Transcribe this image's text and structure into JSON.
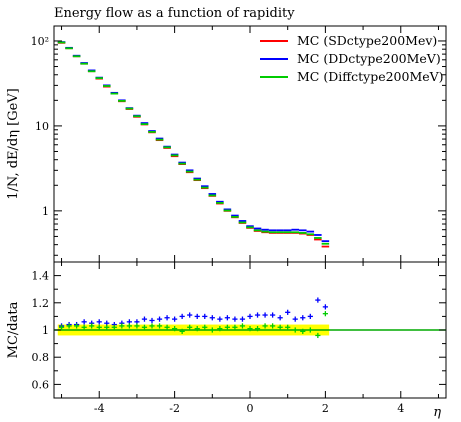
{
  "chart_data": {
    "type": "scatter",
    "title": "Energy flow as a function of rapidity",
    "xlabel": "η",
    "ylabel": "1/N, dE/dη [GeV]",
    "ratio_ylabel": "MC/data",
    "xlim": [
      -5.2,
      5.2
    ],
    "ylim": [
      0.25,
      150
    ],
    "yscale": "log",
    "ratio_ylim": [
      0.5,
      1.5
    ],
    "legend_position": "top-right",
    "x_ticks": [
      "-4",
      "-2",
      "0",
      "2",
      "4"
    ],
    "main_y_ticks": [
      "10²",
      "10",
      "1"
    ],
    "ratio_y_ticks": [
      "1.4",
      "1.2",
      "1",
      "0.8",
      "0.6"
    ],
    "x": [
      -5.0,
      -4.8,
      -4.6,
      -4.4,
      -4.2,
      -4.0,
      -3.8,
      -3.6,
      -3.4,
      -3.2,
      -3.0,
      -2.8,
      -2.6,
      -2.4,
      -2.2,
      -2.0,
      -1.8,
      -1.6,
      -1.4,
      -1.2,
      -1.0,
      -0.8,
      -0.6,
      -0.4,
      -0.2,
      0.0,
      0.2,
      0.4,
      0.6,
      0.8,
      1.0,
      1.2,
      1.4,
      1.6,
      1.8,
      2.0
    ],
    "series": [
      {
        "name": "MC (SDctype200Mev)",
        "color": "#ff0000",
        "values": [
          95,
          82,
          66,
          54,
          44,
          36,
          29,
          24,
          19.5,
          15.8,
          12.8,
          10.4,
          8.4,
          6.8,
          5.5,
          4.4,
          3.55,
          2.85,
          2.3,
          1.85,
          1.5,
          1.22,
          1.0,
          0.84,
          0.72,
          0.63,
          0.58,
          0.56,
          0.55,
          0.55,
          0.55,
          0.55,
          0.54,
          0.52,
          0.46,
          0.38
        ]
      },
      {
        "name": "MC (DDctype200MeV)",
        "color": "#0000ff",
        "values": [
          97,
          83,
          67,
          55,
          45,
          37,
          30,
          24.5,
          20,
          16.2,
          13.2,
          10.8,
          8.7,
          7.1,
          5.7,
          4.6,
          3.7,
          3.0,
          2.4,
          1.95,
          1.58,
          1.28,
          1.04,
          0.88,
          0.76,
          0.66,
          0.62,
          0.6,
          0.59,
          0.59,
          0.59,
          0.6,
          0.59,
          0.57,
          0.52,
          0.44
        ]
      },
      {
        "name": "MC (Diffctype200MeV)",
        "color": "#00cc00",
        "values": [
          96,
          82,
          66,
          54,
          44,
          36.5,
          29.5,
          24,
          19.7,
          16,
          13,
          10.5,
          8.5,
          6.9,
          5.6,
          4.5,
          3.6,
          2.9,
          2.33,
          1.88,
          1.52,
          1.24,
          1.01,
          0.85,
          0.73,
          0.64,
          0.59,
          0.57,
          0.56,
          0.56,
          0.56,
          0.56,
          0.55,
          0.53,
          0.48,
          0.41
        ]
      }
    ],
    "ratio_series": [
      {
        "name": "MC (DDctype200MeV)",
        "color": "#0000ff",
        "values": [
          1.03,
          1.04,
          1.04,
          1.06,
          1.05,
          1.06,
          1.05,
          1.04,
          1.05,
          1.06,
          1.06,
          1.08,
          1.07,
          1.08,
          1.09,
          1.08,
          1.1,
          1.11,
          1.1,
          1.1,
          1.09,
          1.08,
          1.09,
          1.08,
          1.08,
          1.1,
          1.11,
          1.11,
          1.11,
          1.09,
          1.13,
          1.08,
          1.09,
          1.1,
          1.22,
          1.17
        ]
      },
      {
        "name": "MC (Diffctype200MeV)",
        "color": "#00cc00",
        "values": [
          1.02,
          1.03,
          1.03,
          1.02,
          1.03,
          1.02,
          1.02,
          1.02,
          1.03,
          1.03,
          1.03,
          1.02,
          1.03,
          1.03,
          1.02,
          1.01,
          0.99,
          1.02,
          1.01,
          1.02,
          1.0,
          1.01,
          1.02,
          1.02,
          1.03,
          1.01,
          1.01,
          1.03,
          1.03,
          1.02,
          1.02,
          1.0,
          0.99,
          1.0,
          0.96,
          1.12
        ]
      }
    ],
    "ratio_band": {
      "color": "#ffff00",
      "x": [
        -5.0,
        2.0
      ],
      "low": 0.96,
      "high": 1.04
    },
    "reference_line": {
      "value": 1.0,
      "color": "#00aa00"
    }
  }
}
